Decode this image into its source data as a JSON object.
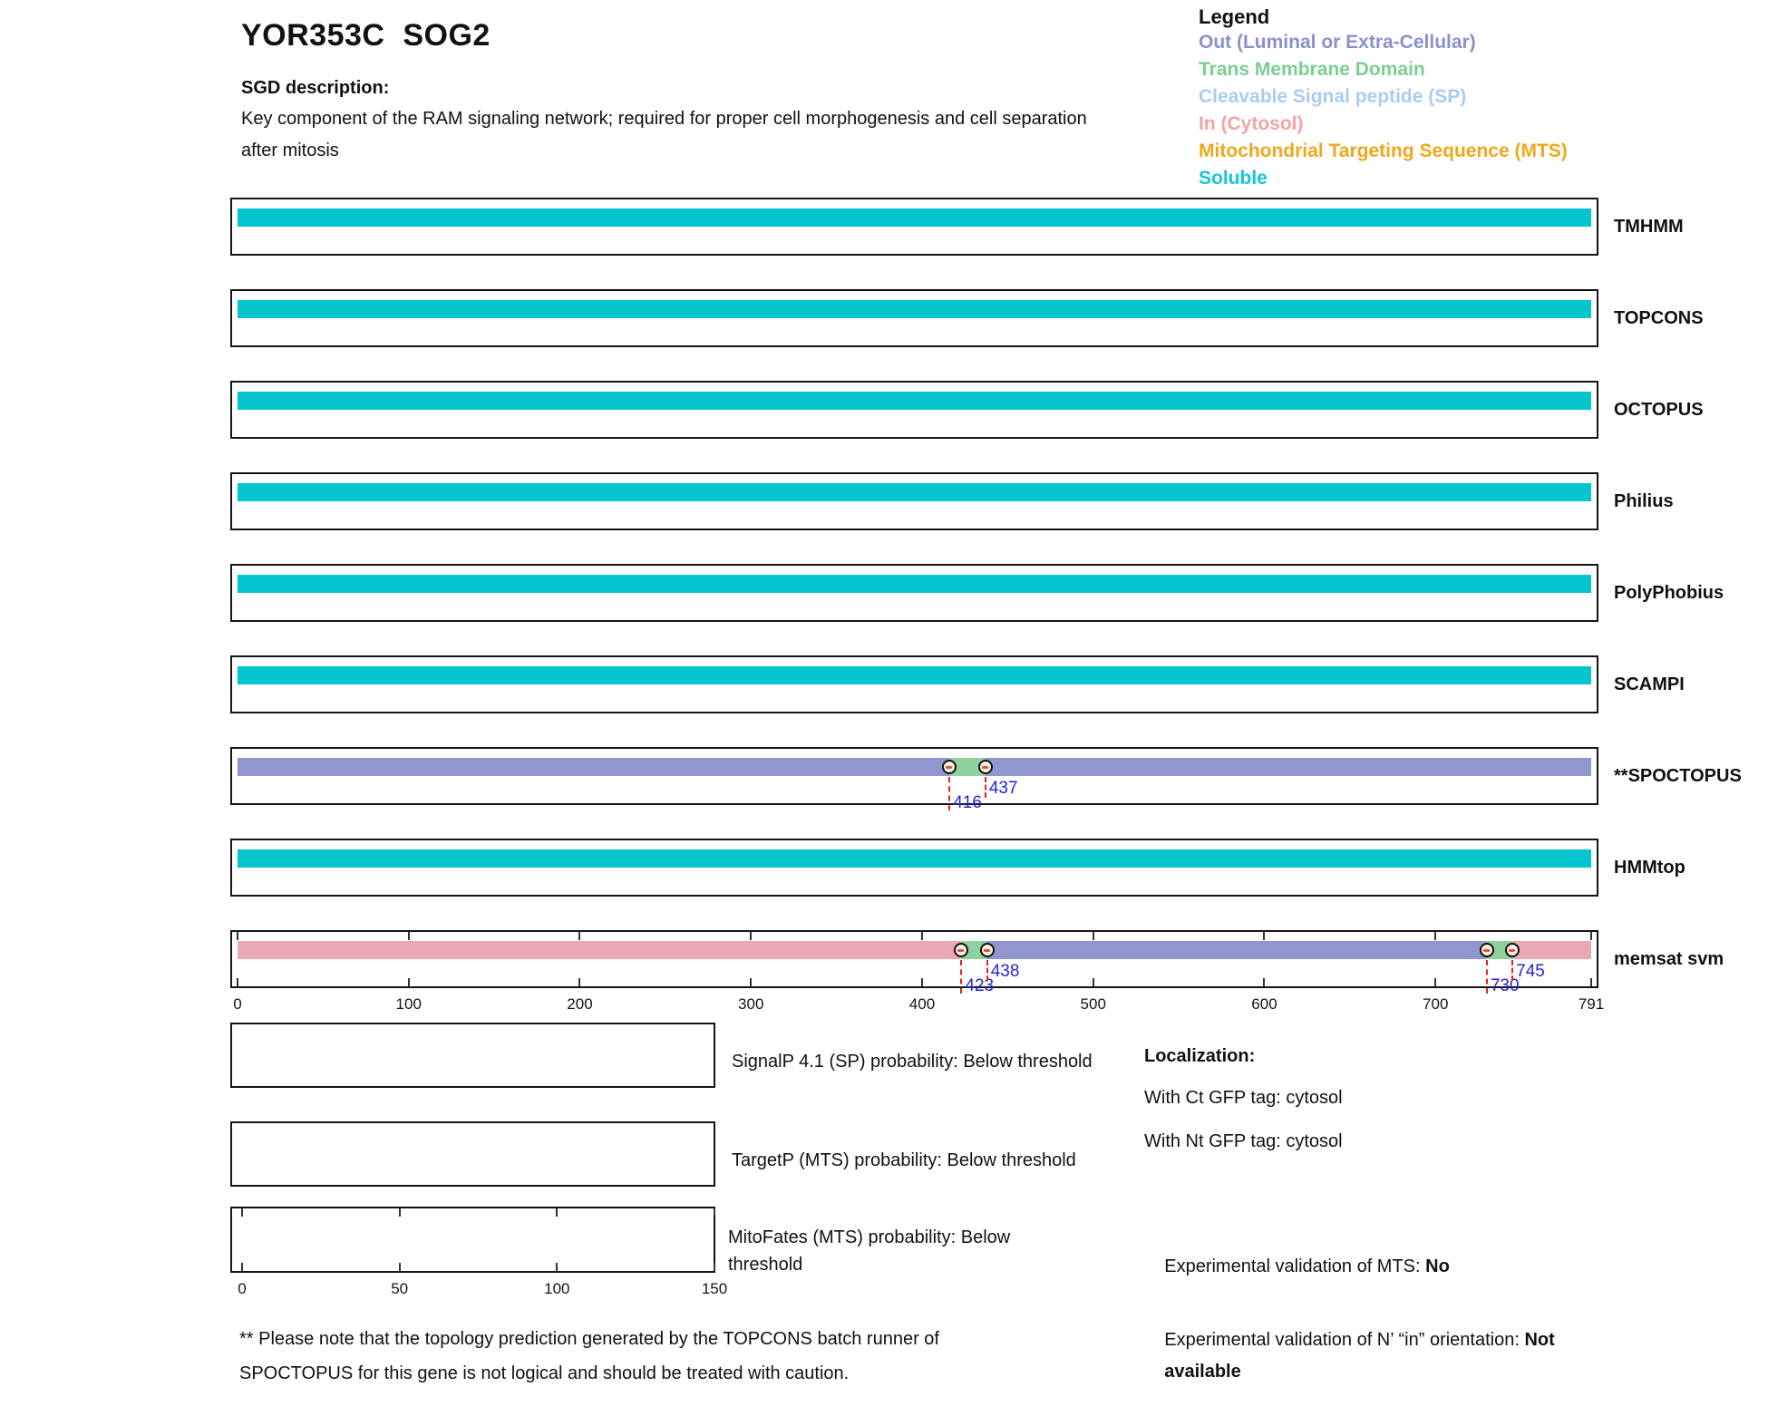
{
  "header": {
    "title": "YOR353C  SOG2",
    "sgd_label": "SGD description:",
    "description_lines": [
      "Key component of the RAM signaling network; required for proper cell morphogenesis and cell separation",
      "after mitosis"
    ]
  },
  "legend": {
    "title": "Legend",
    "entries": [
      {
        "label": "Out (Luminal or Extra-Cellular)",
        "color": "#8b90cb"
      },
      {
        "label": "Trans Membrane Domain",
        "color": "#7ccd94"
      },
      {
        "label": "Cleavable Signal peptide (SP)",
        "color": "#a9ccf1"
      },
      {
        "label": "In (Cytosol)",
        "color": "#f2a3a8"
      },
      {
        "label": "Mitochondrial Targeting Sequence (MTS)",
        "color": "#f0a71a"
      },
      {
        "label": "Soluble",
        "color": "#14c8d2"
      }
    ]
  },
  "chart_data": {
    "type": "protein-topology-tracks",
    "sequence_length": 791,
    "x_axis_ticks": [
      0,
      100,
      200,
      300,
      400,
      500,
      600,
      700,
      791
    ],
    "segment_colors": {
      "soluble": "#04c5cd",
      "out": "#9196ce",
      "tm": "#8ed09e",
      "in": "#eaa9b2"
    },
    "tracks": [
      {
        "name": "TMHMM",
        "segments": [
          {
            "type": "soluble",
            "start": 0,
            "end": 791
          }
        ],
        "markers": [],
        "has_axis_ticks": false
      },
      {
        "name": "TOPCONS",
        "segments": [
          {
            "type": "soluble",
            "start": 0,
            "end": 791
          }
        ],
        "markers": [],
        "has_axis_ticks": false
      },
      {
        "name": "OCTOPUS",
        "segments": [
          {
            "type": "soluble",
            "start": 0,
            "end": 791
          }
        ],
        "markers": [],
        "has_axis_ticks": false
      },
      {
        "name": "Philius",
        "segments": [
          {
            "type": "soluble",
            "start": 0,
            "end": 791
          }
        ],
        "markers": [],
        "has_axis_ticks": false
      },
      {
        "name": "PolyPhobius",
        "segments": [
          {
            "type": "soluble",
            "start": 0,
            "end": 791
          }
        ],
        "markers": [],
        "has_axis_ticks": false
      },
      {
        "name": "SCAMPI",
        "segments": [
          {
            "type": "soluble",
            "start": 0,
            "end": 791
          }
        ],
        "markers": [],
        "has_axis_ticks": false
      },
      {
        "name": "**SPOCTOPUS",
        "segments": [
          {
            "type": "out",
            "start": 0,
            "end": 416
          },
          {
            "type": "tm",
            "start": 416,
            "end": 437
          },
          {
            "type": "out",
            "start": 437,
            "end": 791
          }
        ],
        "markers": [
          {
            "pos": 416,
            "label": "416",
            "drop": "long"
          },
          {
            "pos": 437,
            "label": "437",
            "drop": "short"
          }
        ],
        "has_axis_ticks": false
      },
      {
        "name": "HMMtop",
        "segments": [
          {
            "type": "soluble",
            "start": 0,
            "end": 791
          }
        ],
        "markers": [],
        "has_axis_ticks": false
      },
      {
        "name": "memsat svm",
        "segments": [
          {
            "type": "in",
            "start": 0,
            "end": 423
          },
          {
            "type": "tm",
            "start": 423,
            "end": 438
          },
          {
            "type": "out",
            "start": 438,
            "end": 730
          },
          {
            "type": "tm",
            "start": 730,
            "end": 745
          },
          {
            "type": "in",
            "start": 745,
            "end": 791
          }
        ],
        "markers": [
          {
            "pos": 423,
            "label": "423",
            "drop": "long"
          },
          {
            "pos": 438,
            "label": "438",
            "drop": "short"
          },
          {
            "pos": 730,
            "label": "730",
            "drop": "long"
          },
          {
            "pos": 745,
            "label": "745",
            "drop": "short"
          }
        ],
        "has_axis_ticks": true
      }
    ]
  },
  "probability_plots": [
    {
      "label_lines": [
        "SignalP 4.1 (SP) probability: Below threshold"
      ],
      "axis_ticks": []
    },
    {
      "label_lines": [
        "TargetP (MTS) probability: Below threshold"
      ],
      "axis_ticks": []
    },
    {
      "label_lines": [
        "MitoFates (MTS) probability: Below",
        "threshold"
      ],
      "axis_ticks": [
        0,
        50,
        100,
        150
      ]
    }
  ],
  "localization": {
    "title": "Localization:",
    "gfp_lines": [
      "With Ct GFP tag: cytosol",
      "With Nt GFP tag: cytosol"
    ],
    "mts_prefix": "Experimental validation of MTS: ",
    "mts_value": "No",
    "orientation_prefix": "Experimental validation of N’ “in” orientation: ",
    "orientation_value_line1": "Not",
    "orientation_value_line2": "available"
  },
  "footnote_lines": [
    "** Please note that the topology prediction generated by the TOPCONS batch runner of",
    "SPOCTOPUS for this gene is not logical and should be treated with caution."
  ]
}
